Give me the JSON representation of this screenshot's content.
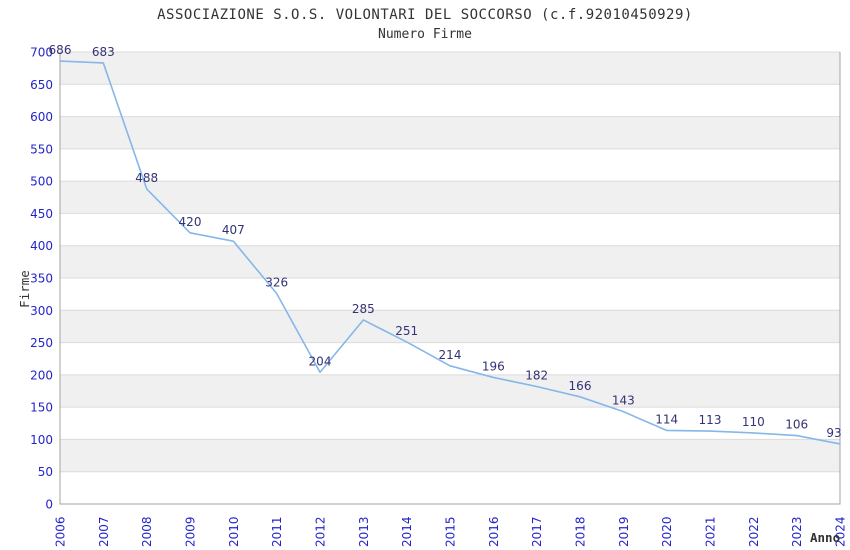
{
  "chart_data": {
    "type": "line",
    "title": "ASSOCIAZIONE S.O.S. VOLONTARI DEL SOCCORSO (c.f.92010450929)",
    "subtitle": "Numero Firme",
    "xlabel": "Anno",
    "ylabel": "Firme",
    "categories": [
      "2006",
      "2007",
      "2008",
      "2009",
      "2010",
      "2011",
      "2012",
      "2013",
      "2014",
      "2015",
      "2016",
      "2017",
      "2018",
      "2019",
      "2020",
      "2021",
      "2022",
      "2023",
      "2024"
    ],
    "values": [
      686,
      683,
      488,
      420,
      407,
      326,
      204,
      285,
      251,
      214,
      196,
      182,
      166,
      143,
      114,
      113,
      110,
      106,
      93
    ],
    "ylim": [
      0,
      700
    ],
    "ytick_step": 50,
    "grid": true,
    "legend_position": "none",
    "band_fill": "alternating-horizontal",
    "x_tick_rotation": 90,
    "data_labels_shown": true
  },
  "colors": {
    "line": "#85B7E8",
    "data_label": "#333375",
    "tick_label": "#2424CC",
    "axis_title": "#333333",
    "band": "#F0F0F0",
    "gridline": "#DBDBDB",
    "axis_line": "#A3A3A3",
    "background": "#FFFFFF"
  }
}
